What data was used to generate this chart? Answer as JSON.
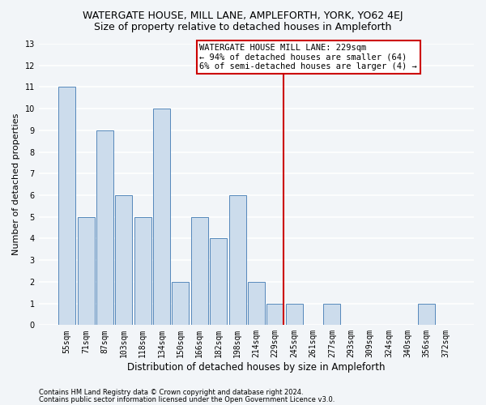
{
  "title": "WATERGATE HOUSE, MILL LANE, AMPLEFORTH, YORK, YO62 4EJ",
  "subtitle": "Size of property relative to detached houses in Ampleforth",
  "xlabel": "Distribution of detached houses by size in Ampleforth",
  "ylabel": "Number of detached properties",
  "categories": [
    "55sqm",
    "71sqm",
    "87sqm",
    "103sqm",
    "118sqm",
    "134sqm",
    "150sqm",
    "166sqm",
    "182sqm",
    "198sqm",
    "214sqm",
    "229sqm",
    "245sqm",
    "261sqm",
    "277sqm",
    "293sqm",
    "309sqm",
    "324sqm",
    "340sqm",
    "356sqm",
    "372sqm"
  ],
  "values": [
    11,
    5,
    9,
    6,
    5,
    10,
    2,
    5,
    4,
    6,
    2,
    1,
    1,
    0,
    1,
    0,
    0,
    0,
    0,
    1,
    0
  ],
  "bar_color": "#ccdcec",
  "bar_edge_color": "#5588bb",
  "highlight_index": 11,
  "highlight_line_color": "#cc0000",
  "annotation_text": "WATERGATE HOUSE MILL LANE: 229sqm\n← 94% of detached houses are smaller (64)\n6% of semi-detached houses are larger (4) →",
  "annotation_box_facecolor": "#ffffff",
  "annotation_box_edge": "#cc0000",
  "ylim": [
    0,
    13
  ],
  "yticks": [
    0,
    1,
    2,
    3,
    4,
    5,
    6,
    7,
    8,
    9,
    10,
    11,
    12,
    13
  ],
  "footer1": "Contains HM Land Registry data © Crown copyright and database right 2024.",
  "footer2": "Contains public sector information licensed under the Open Government Licence v3.0.",
  "bg_color": "#f2f5f8",
  "plot_bg_color": "#f2f5f8",
  "grid_color": "#ffffff",
  "title_fontsize": 9,
  "subtitle_fontsize": 9,
  "tick_fontsize": 7,
  "ylabel_fontsize": 8,
  "xlabel_fontsize": 8.5,
  "footer_fontsize": 6,
  "annot_fontsize": 7.5
}
